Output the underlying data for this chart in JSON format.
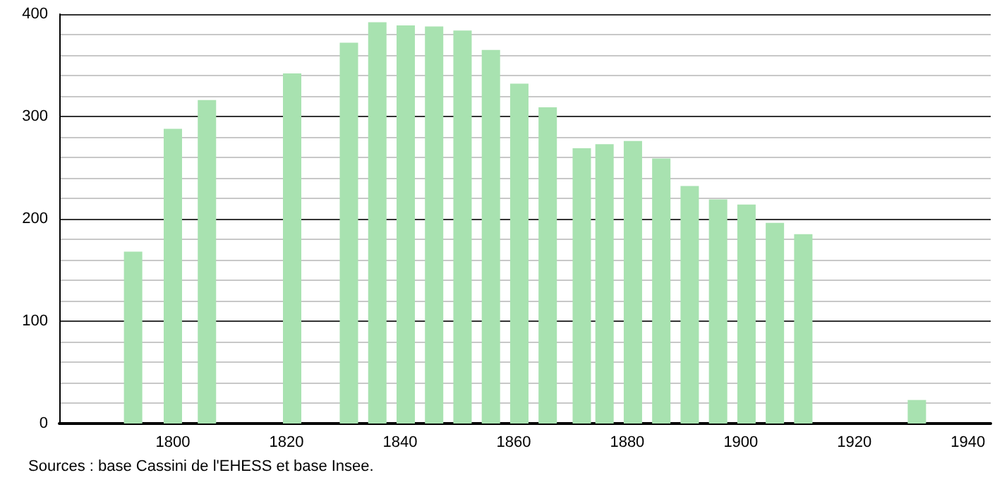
{
  "chart_data": {
    "type": "bar",
    "x": [
      1793,
      1800,
      1806,
      1821,
      1831,
      1836,
      1841,
      1846,
      1851,
      1856,
      1861,
      1866,
      1872,
      1876,
      1881,
      1886,
      1891,
      1896,
      1901,
      1906,
      1911,
      1931
    ],
    "values": [
      168,
      288,
      316,
      342,
      372,
      392,
      389,
      388,
      384,
      365,
      332,
      309,
      269,
      273,
      276,
      259,
      232,
      219,
      214,
      196,
      185,
      23
    ],
    "color": "#a8e2b0",
    "xlim": [
      1780,
      1944
    ],
    "xticks": [
      1800,
      1820,
      1840,
      1860,
      1880,
      1900,
      1920,
      1940
    ],
    "ylim": [
      0,
      400
    ],
    "yticks": [
      0,
      100,
      200,
      300,
      400
    ],
    "grid": "y",
    "annotations": [
      "Sources : base Cassini de l'EHESS et base Insee."
    ]
  }
}
